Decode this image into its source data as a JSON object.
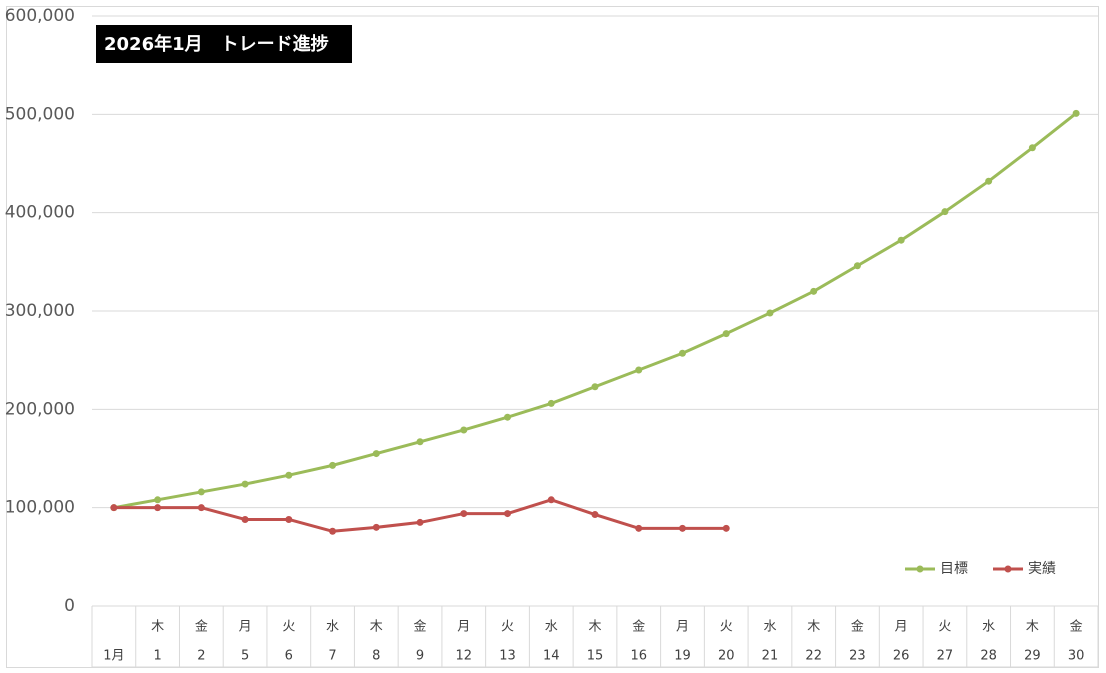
{
  "chart_data": {
    "type": "line",
    "title": "2026年1月　トレード進捗",
    "categories": [
      "1月",
      "1",
      "2",
      "5",
      "6",
      "7",
      "8",
      "9",
      "12",
      "13",
      "14",
      "15",
      "16",
      "19",
      "20",
      "21",
      "22",
      "23",
      "26",
      "27",
      "28",
      "29",
      "30"
    ],
    "weekdays": [
      null,
      "木",
      "金",
      "月",
      "火",
      "水",
      "木",
      "金",
      "月",
      "火",
      "水",
      "木",
      "金",
      "月",
      "火",
      "水",
      "木",
      "金",
      "月",
      "火",
      "水",
      "木",
      "金"
    ],
    "series": [
      {
        "name": "目標",
        "color": "#9bbb59",
        "values": [
          100000,
          108000,
          116000,
          124000,
          133000,
          143000,
          155000,
          167000,
          179000,
          192000,
          206000,
          223000,
          240000,
          257000,
          277000,
          298000,
          320000,
          346000,
          372000,
          401000,
          432000,
          466000,
          501000
        ]
      },
      {
        "name": "実績",
        "color": "#c0504d",
        "values": [
          100000,
          100000,
          100000,
          88000,
          88000,
          76000,
          80000,
          85000,
          94000,
          94000,
          108000,
          93000,
          79000,
          79000,
          79000,
          null,
          null,
          null,
          null,
          null,
          null,
          null,
          null
        ]
      }
    ],
    "ylim": [
      0,
      600000
    ],
    "yticks": [
      0,
      {
        "value": 100000,
        "label": "100,000"
      },
      {
        "value": 200000,
        "label": "200,000"
      },
      {
        "value": 300000,
        "label": "300,000"
      },
      {
        "value": 400000,
        "label": "400,000"
      },
      {
        "value": 500000,
        "label": "500,000"
      },
      {
        "value": 600000,
        "label": "600,000"
      }
    ],
    "grid": true,
    "legend": "lower right"
  }
}
